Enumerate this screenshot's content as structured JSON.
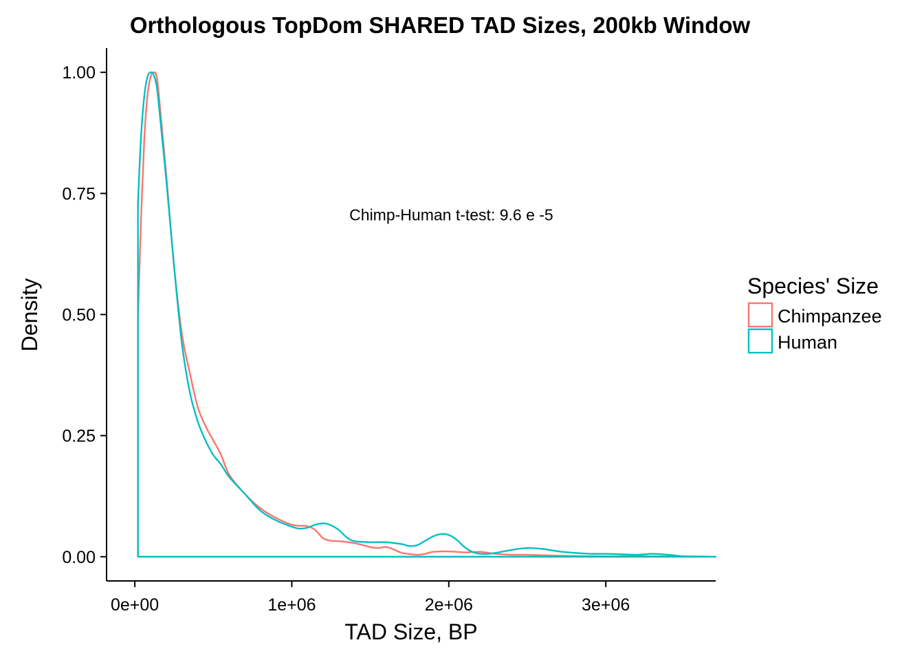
{
  "chart_data": {
    "type": "area",
    "title": "Orthologous TopDom SHARED TAD Sizes, 200kb Window",
    "xlabel": "TAD Size, BP",
    "ylabel": "Density",
    "xlim": [
      -180000,
      3700000
    ],
    "ylim": [
      -0.05,
      1.05
    ],
    "x_ticks": [
      0,
      1000000,
      2000000,
      3000000
    ],
    "x_tick_labels": [
      "0e+00",
      "1e+06",
      "2e+06",
      "3e+06"
    ],
    "y_ticks": [
      0,
      0.25,
      0.5,
      0.75,
      1.0
    ],
    "y_tick_labels": [
      "0.00",
      "0.25",
      "0.50",
      "0.75",
      "1.00"
    ],
    "grid": false,
    "annotation": {
      "text": "Chimp-Human t-test: 9.6 e -5",
      "x": 1000000,
      "y": 0.7
    },
    "legend": {
      "title": "Species' Size",
      "position": "right"
    },
    "series": [
      {
        "name": "Chimpanzee",
        "color": "#F8766D",
        "x_min": 20000,
        "x_max": 3700000,
        "points": [
          [
            20000,
            0.49
          ],
          [
            40000,
            0.7
          ],
          [
            60000,
            0.86
          ],
          [
            80000,
            0.95
          ],
          [
            100000,
            0.99
          ],
          [
            120000,
            1.0
          ],
          [
            140000,
            0.99
          ],
          [
            160000,
            0.93
          ],
          [
            200000,
            0.79
          ],
          [
            250000,
            0.6
          ],
          [
            300000,
            0.46
          ],
          [
            350000,
            0.38
          ],
          [
            400000,
            0.31
          ],
          [
            450000,
            0.27
          ],
          [
            500000,
            0.24
          ],
          [
            550000,
            0.21
          ],
          [
            600000,
            0.17
          ],
          [
            700000,
            0.13
          ],
          [
            800000,
            0.1
          ],
          [
            900000,
            0.08
          ],
          [
            1000000,
            0.066
          ],
          [
            1050000,
            0.064
          ],
          [
            1100000,
            0.063
          ],
          [
            1150000,
            0.055
          ],
          [
            1200000,
            0.038
          ],
          [
            1250000,
            0.033
          ],
          [
            1300000,
            0.032
          ],
          [
            1400000,
            0.028
          ],
          [
            1500000,
            0.02
          ],
          [
            1550000,
            0.018
          ],
          [
            1600000,
            0.02
          ],
          [
            1650000,
            0.015
          ],
          [
            1700000,
            0.008
          ],
          [
            1800000,
            0.004
          ],
          [
            1850000,
            0.006
          ],
          [
            1900000,
            0.01
          ],
          [
            2000000,
            0.011
          ],
          [
            2100000,
            0.009
          ],
          [
            2200000,
            0.01
          ],
          [
            2300000,
            0.006
          ],
          [
            2400000,
            0.004
          ],
          [
            2500000,
            0.004
          ],
          [
            2700000,
            0.002
          ],
          [
            3000000,
            0.001
          ],
          [
            3300000,
            0.001
          ],
          [
            3700000,
            0.0
          ]
        ]
      },
      {
        "name": "Human",
        "color": "#00BFC4",
        "x_min": 20000,
        "x_max": 3700000,
        "points": [
          [
            20000,
            0.73
          ],
          [
            40000,
            0.87
          ],
          [
            60000,
            0.95
          ],
          [
            80000,
            0.99
          ],
          [
            100000,
            1.0
          ],
          [
            120000,
            0.995
          ],
          [
            140000,
            0.97
          ],
          [
            160000,
            0.91
          ],
          [
            200000,
            0.78
          ],
          [
            250000,
            0.6
          ],
          [
            300000,
            0.44
          ],
          [
            350000,
            0.34
          ],
          [
            400000,
            0.28
          ],
          [
            450000,
            0.24
          ],
          [
            500000,
            0.21
          ],
          [
            550000,
            0.19
          ],
          [
            600000,
            0.165
          ],
          [
            700000,
            0.13
          ],
          [
            800000,
            0.095
          ],
          [
            900000,
            0.075
          ],
          [
            1000000,
            0.062
          ],
          [
            1050000,
            0.058
          ],
          [
            1100000,
            0.06
          ],
          [
            1150000,
            0.066
          ],
          [
            1200000,
            0.069
          ],
          [
            1250000,
            0.065
          ],
          [
            1300000,
            0.055
          ],
          [
            1350000,
            0.04
          ],
          [
            1400000,
            0.032
          ],
          [
            1500000,
            0.03
          ],
          [
            1600000,
            0.03
          ],
          [
            1700000,
            0.026
          ],
          [
            1750000,
            0.022
          ],
          [
            1800000,
            0.024
          ],
          [
            1850000,
            0.033
          ],
          [
            1900000,
            0.042
          ],
          [
            1950000,
            0.047
          ],
          [
            2000000,
            0.045
          ],
          [
            2050000,
            0.035
          ],
          [
            2100000,
            0.02
          ],
          [
            2150000,
            0.01
          ],
          [
            2200000,
            0.006
          ],
          [
            2250000,
            0.006
          ],
          [
            2300000,
            0.008
          ],
          [
            2400000,
            0.014
          ],
          [
            2500000,
            0.018
          ],
          [
            2600000,
            0.016
          ],
          [
            2700000,
            0.011
          ],
          [
            2800000,
            0.008
          ],
          [
            2900000,
            0.006
          ],
          [
            3000000,
            0.006
          ],
          [
            3100000,
            0.005
          ],
          [
            3200000,
            0.004
          ],
          [
            3300000,
            0.006
          ],
          [
            3400000,
            0.004
          ],
          [
            3500000,
            0.001
          ],
          [
            3700000,
            0.0
          ]
        ]
      }
    ]
  }
}
